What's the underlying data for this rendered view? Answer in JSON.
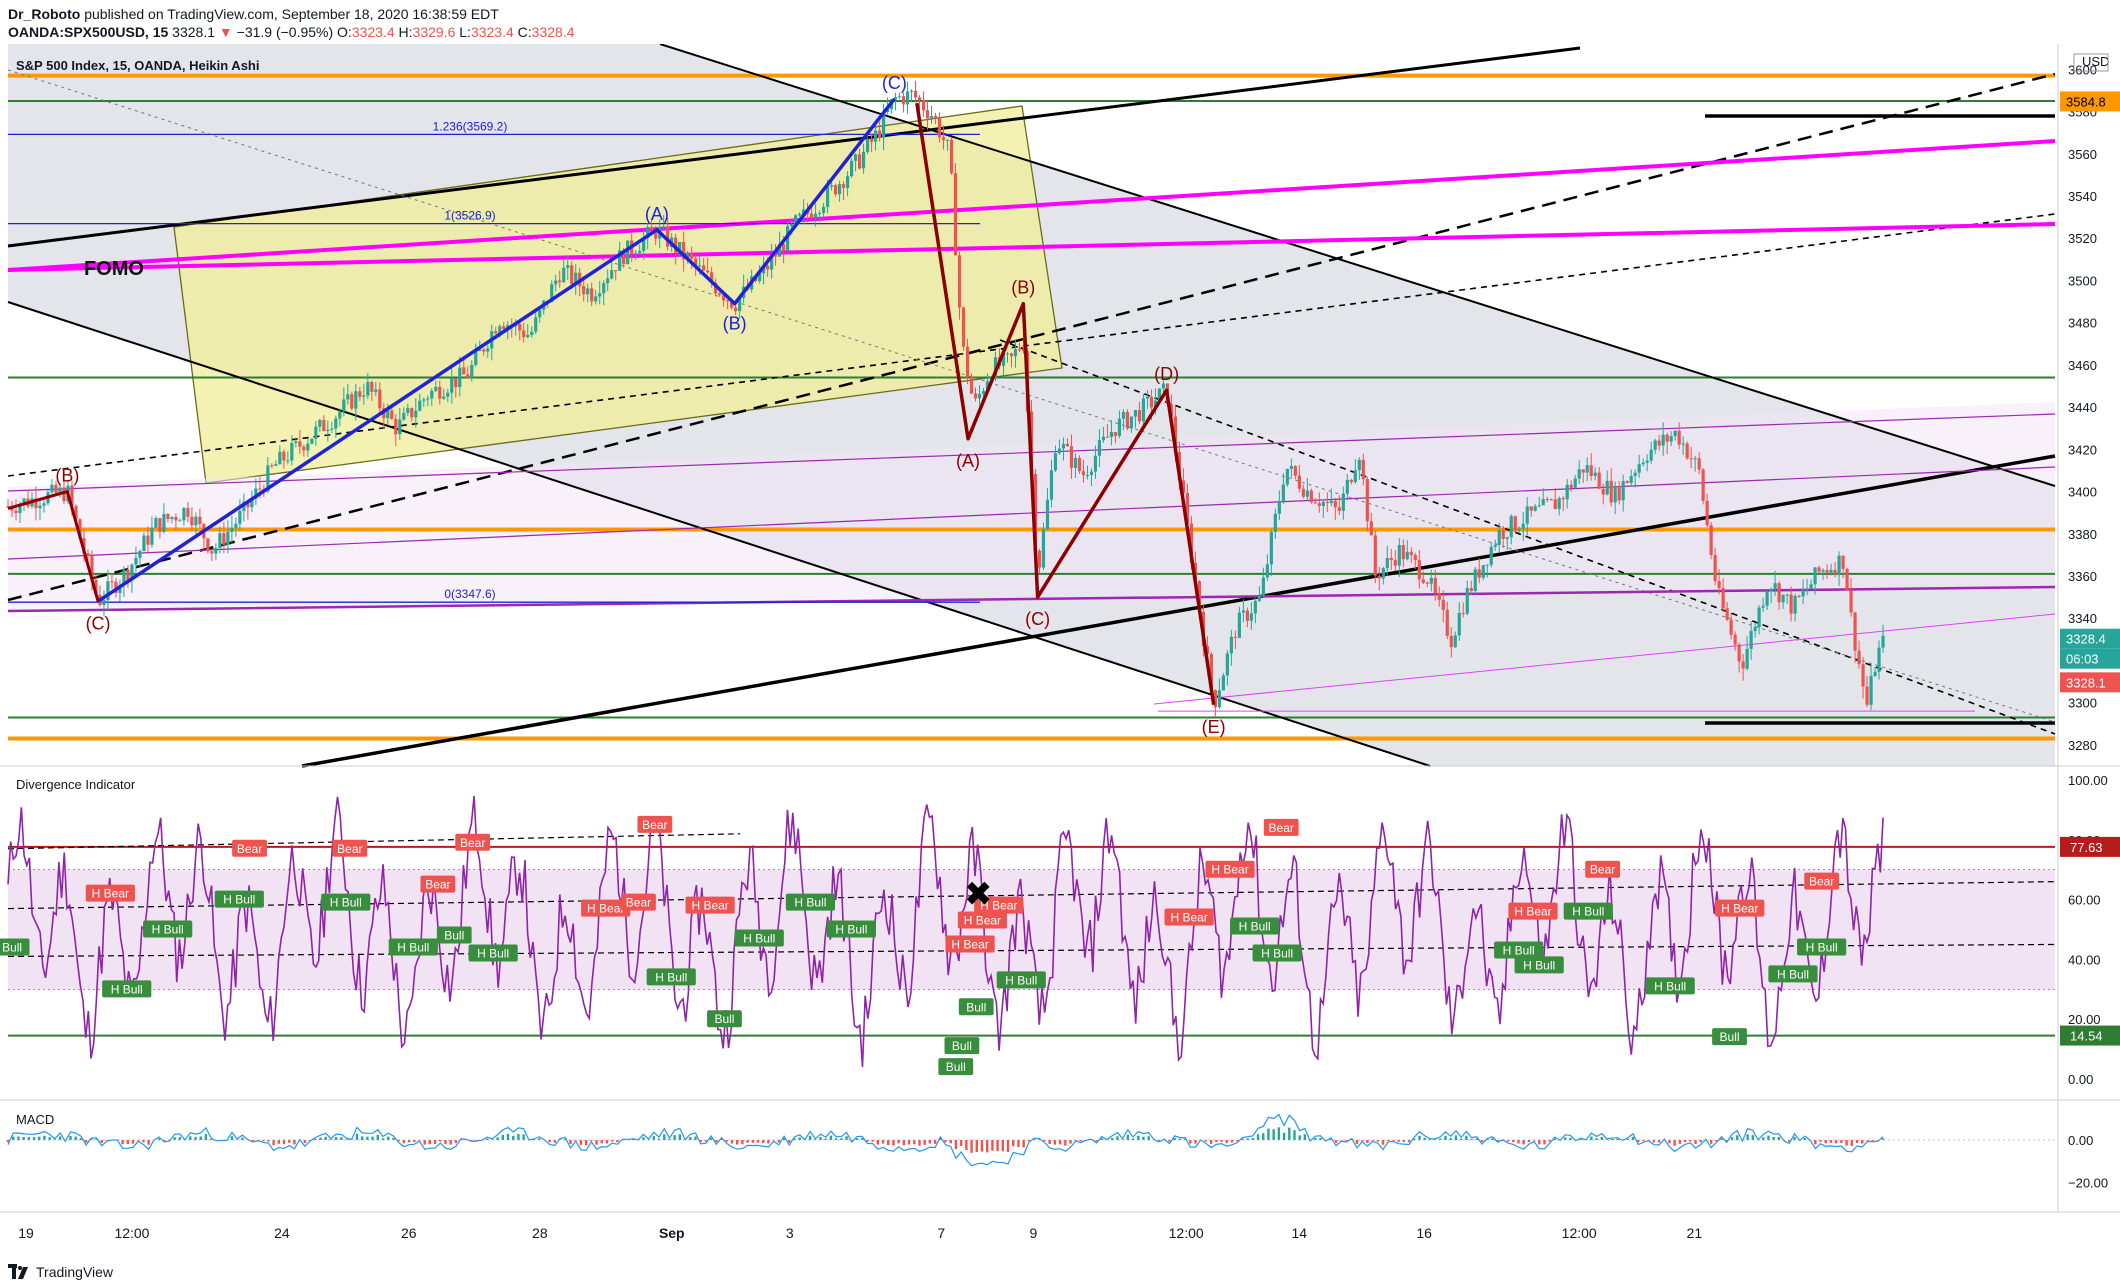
{
  "header": {
    "publisher": "Dr_Roboto",
    "published_text": " published on TradingView.com, September 18, 2020 16:38:59 EDT",
    "symbol": "OANDA:SPX500USD, 15",
    "last": "3328.1",
    "change_arrow": "▼",
    "change": "−31.9 (−0.95%)",
    "o_label": "O:",
    "o_value": "3323.4",
    "h_label": "H:",
    "h_value": "3329.6",
    "l_label": "L:",
    "l_value": "3323.4",
    "c_label": "C:",
    "c_value": "3328.4"
  },
  "footer": {
    "brand": "TradingView"
  },
  "chart_data": [
    {
      "type": "candlestick",
      "title": "S&P 500 Index, 15, OANDA, Heikin Ashi",
      "currency": "USD",
      "ylim": [
        3270,
        3612
      ],
      "y_ticks": [
        3280,
        3300,
        3320,
        3340,
        3360,
        3380,
        3400,
        3420,
        3440,
        3460,
        3480,
        3500,
        3520,
        3540,
        3560,
        3580,
        3600
      ],
      "x_ticks": [
        "19",
        "12:00",
        "24",
        "26",
        "28",
        "Sep",
        "3",
        "7",
        "9",
        "12:00",
        "14",
        "16",
        "12:00",
        "21"
      ],
      "price_labels": {
        "high_line": "3584.8",
        "current": "3328.4",
        "countdown": "06:03",
        "last": "3328.1"
      },
      "fib_levels": [
        {
          "ratio_label": "1.236(3569.2)",
          "value": 3569.2
        },
        {
          "ratio_label": "1(3526.9)",
          "value": 3526.9
        },
        {
          "ratio_label": "0(3347.6)",
          "value": 3347.6
        }
      ],
      "horizontal_levels": [
        {
          "value": 3597,
          "color": "#ff9800"
        },
        {
          "value": 3585,
          "color": "#2e7d32"
        },
        {
          "value": 3454,
          "color": "#2e7d32"
        },
        {
          "value": 3382,
          "color": "#ff9800"
        },
        {
          "value": 3361,
          "color": "#2e7d32"
        },
        {
          "value": 3293,
          "color": "#2e7d32"
        },
        {
          "value": 3283,
          "color": "#ff9800"
        }
      ],
      "annotations": {
        "fomo": "FOMO",
        "wave_blue": [
          {
            "label": "(A)",
            "x": 0.317,
            "y": 3524
          },
          {
            "label": "(B)",
            "x": 0.355,
            "y": 3489
          },
          {
            "label": "(C)",
            "x": 0.433,
            "y": 3586
          }
        ],
        "wave_red": [
          {
            "label": "(B)",
            "x": 0.029,
            "y": 3400
          },
          {
            "label": "(C)",
            "x": 0.044,
            "y": 3348
          },
          {
            "label": "(A)",
            "x": 0.469,
            "y": 3425
          },
          {
            "label": "(B)",
            "x": 0.496,
            "y": 3489
          },
          {
            "label": "(C)",
            "x": 0.503,
            "y": 3350
          },
          {
            "label": "(D)",
            "x": 0.566,
            "y": 3448
          },
          {
            "label": "(E)",
            "x": 0.589,
            "y": 3299
          }
        ]
      },
      "series": [
        {
          "name": "blue_wave",
          "color": "#1e22d8",
          "points": [
            [
              0.044,
              3348
            ],
            [
              0.317,
              3524
            ],
            [
              0.355,
              3489
            ],
            [
              0.433,
              3586
            ]
          ]
        },
        {
          "name": "red_wave",
          "color": "#8b0000",
          "points": [
            [
              0.0,
              3392
            ],
            [
              0.029,
              3400
            ],
            [
              0.044,
              3348
            ]
          ]
        },
        {
          "name": "red_wave_2",
          "color": "#8b0000",
          "points": [
            [
              0.444,
              3584
            ],
            [
              0.469,
              3425
            ],
            [
              0.496,
              3489
            ],
            [
              0.503,
              3350
            ],
            [
              0.566,
              3448
            ],
            [
              0.589,
              3299
            ]
          ]
        },
        {
          "name": "price",
          "points": [
            [
              0.0,
              3393
            ],
            [
              0.015,
              3397
            ],
            [
              0.029,
              3400
            ],
            [
              0.037,
              3372
            ],
            [
              0.044,
              3348
            ],
            [
              0.058,
              3362
            ],
            [
              0.072,
              3384
            ],
            [
              0.088,
              3392
            ],
            [
              0.1,
              3372
            ],
            [
              0.115,
              3390
            ],
            [
              0.13,
              3412
            ],
            [
              0.145,
              3424
            ],
            [
              0.16,
              3436
            ],
            [
              0.175,
              3450
            ],
            [
              0.19,
              3430
            ],
            [
              0.205,
              3446
            ],
            [
              0.225,
              3456
            ],
            [
              0.24,
              3482
            ],
            [
              0.255,
              3474
            ],
            [
              0.27,
              3505
            ],
            [
              0.285,
              3494
            ],
            [
              0.3,
              3512
            ],
            [
              0.317,
              3524
            ],
            [
              0.33,
              3512
            ],
            [
              0.345,
              3498
            ],
            [
              0.355,
              3489
            ],
            [
              0.37,
              3505
            ],
            [
              0.385,
              3527
            ],
            [
              0.4,
              3540
            ],
            [
              0.415,
              3556
            ],
            [
              0.425,
              3570
            ],
            [
              0.433,
              3586
            ],
            [
              0.442,
              3588
            ],
            [
              0.452,
              3578
            ],
            [
              0.46,
              3560
            ],
            [
              0.466,
              3470
            ],
            [
              0.472,
              3440
            ],
            [
              0.48,
              3458
            ],
            [
              0.49,
              3462
            ],
            [
              0.496,
              3472
            ],
            [
              0.503,
              3360
            ],
            [
              0.512,
              3425
            ],
            [
              0.525,
              3408
            ],
            [
              0.54,
              3430
            ],
            [
              0.553,
              3438
            ],
            [
              0.566,
              3448
            ],
            [
              0.575,
              3390
            ],
            [
              0.589,
              3299
            ],
            [
              0.6,
              3336
            ],
            [
              0.612,
              3350
            ],
            [
              0.624,
              3412
            ],
            [
              0.635,
              3400
            ],
            [
              0.65,
              3390
            ],
            [
              0.66,
              3420
            ],
            [
              0.668,
              3360
            ],
            [
              0.68,
              3372
            ],
            [
              0.693,
              3360
            ],
            [
              0.705,
              3330
            ],
            [
              0.712,
              3350
            ],
            [
              0.728,
              3380
            ],
            [
              0.742,
              3388
            ],
            [
              0.757,
              3395
            ],
            [
              0.77,
              3412
            ],
            [
              0.785,
              3398
            ],
            [
              0.8,
              3418
            ],
            [
              0.815,
              3428
            ],
            [
              0.826,
              3410
            ],
            [
              0.835,
              3352
            ],
            [
              0.847,
              3318
            ],
            [
              0.86,
              3358
            ],
            [
              0.872,
              3345
            ],
            [
              0.885,
              3362
            ],
            [
              0.897,
              3368
            ],
            [
              0.9,
              3342
            ],
            [
              0.908,
              3298
            ],
            [
              0.913,
              3322
            ],
            [
              0.916,
              3328
            ]
          ]
        }
      ]
    },
    {
      "type": "line",
      "title": "Divergence Indicator",
      "ylim": [
        -5,
        102
      ],
      "y_ticks": [
        "100.00",
        "80.00",
        "60.00",
        "40.00",
        "20.00",
        "0.00"
      ],
      "levels": {
        "upper": "77.63",
        "lower": "14.54",
        "band": [
          30,
          70
        ]
      },
      "signals": [
        {
          "label": "H Bear",
          "x": 0.05,
          "y": 62,
          "kind": "bear"
        },
        {
          "label": "H Bull",
          "x": 0.058,
          "y": 30,
          "kind": "bull"
        },
        {
          "label": "Bull",
          "x": 0.002,
          "y": 44,
          "kind": "bull"
        },
        {
          "label": "H Bull",
          "x": 0.078,
          "y": 50,
          "kind": "bull"
        },
        {
          "label": "Bear",
          "x": 0.118,
          "y": 77,
          "kind": "bear"
        },
        {
          "label": "H Bull",
          "x": 0.113,
          "y": 60,
          "kind": "bull"
        },
        {
          "label": "H Bull",
          "x": 0.165,
          "y": 59,
          "kind": "bull"
        },
        {
          "label": "Bear",
          "x": 0.167,
          "y": 77,
          "kind": "bear"
        },
        {
          "label": "H Bull",
          "x": 0.198,
          "y": 44,
          "kind": "bull"
        },
        {
          "label": "Bull",
          "x": 0.218,
          "y": 48,
          "kind": "bull"
        },
        {
          "label": "Bear",
          "x": 0.21,
          "y": 65,
          "kind": "bear"
        },
        {
          "label": "Bear",
          "x": 0.227,
          "y": 79,
          "kind": "bear"
        },
        {
          "label": "H Bull",
          "x": 0.237,
          "y": 42,
          "kind": "bull"
        },
        {
          "label": "H Bear",
          "x": 0.292,
          "y": 57,
          "kind": "bear"
        },
        {
          "label": "Bear",
          "x": 0.308,
          "y": 59,
          "kind": "bear"
        },
        {
          "label": "Bear",
          "x": 0.316,
          "y": 85,
          "kind": "bear"
        },
        {
          "label": "H Bull",
          "x": 0.324,
          "y": 34,
          "kind": "bull"
        },
        {
          "label": "Bull",
          "x": 0.35,
          "y": 20,
          "kind": "bull"
        },
        {
          "label": "H Bear",
          "x": 0.343,
          "y": 58,
          "kind": "bear"
        },
        {
          "label": "H Bull",
          "x": 0.367,
          "y": 47,
          "kind": "bull"
        },
        {
          "label": "H Bull",
          "x": 0.392,
          "y": 59,
          "kind": "bull"
        },
        {
          "label": "H Bull",
          "x": 0.412,
          "y": 50,
          "kind": "bull"
        },
        {
          "label": "H Bear",
          "x": 0.47,
          "y": 45,
          "kind": "bear"
        },
        {
          "label": "H Bear",
          "x": 0.476,
          "y": 53,
          "kind": "bear"
        },
        {
          "label": "H Bear",
          "x": 0.484,
          "y": 58,
          "kind": "bear"
        },
        {
          "label": "Bull",
          "x": 0.473,
          "y": 24,
          "kind": "bull"
        },
        {
          "label": "Bull",
          "x": 0.466,
          "y": 11,
          "kind": "bull"
        },
        {
          "label": "Bull",
          "x": 0.463,
          "y": 4,
          "kind": "bull"
        },
        {
          "label": "H Bull",
          "x": 0.495,
          "y": 33,
          "kind": "bull"
        },
        {
          "label": "H Bear",
          "x": 0.577,
          "y": 54,
          "kind": "bear"
        },
        {
          "label": "H Bear",
          "x": 0.597,
          "y": 70,
          "kind": "bear"
        },
        {
          "label": "H Bull",
          "x": 0.609,
          "y": 51,
          "kind": "bull"
        },
        {
          "label": "Bear",
          "x": 0.622,
          "y": 84,
          "kind": "bear"
        },
        {
          "label": "H Bull",
          "x": 0.62,
          "y": 42,
          "kind": "bull"
        },
        {
          "label": "H Bear",
          "x": 0.745,
          "y": 56,
          "kind": "bear"
        },
        {
          "label": "H Bull",
          "x": 0.738,
          "y": 43,
          "kind": "bull"
        },
        {
          "label": "H Bull",
          "x": 0.748,
          "y": 38,
          "kind": "bull"
        },
        {
          "label": "H Bull",
          "x": 0.772,
          "y": 56,
          "kind": "bull"
        },
        {
          "label": "Bear",
          "x": 0.779,
          "y": 70,
          "kind": "bear"
        },
        {
          "label": "H Bear",
          "x": 0.846,
          "y": 57,
          "kind": "bear"
        },
        {
          "label": "Bull",
          "x": 0.841,
          "y": 14,
          "kind": "bull"
        },
        {
          "label": "H Bull",
          "x": 0.812,
          "y": 31,
          "kind": "bull"
        },
        {
          "label": "H Bull",
          "x": 0.872,
          "y": 35,
          "kind": "bull"
        },
        {
          "label": "Bear",
          "x": 0.886,
          "y": 66,
          "kind": "bear"
        },
        {
          "label": "H Bull",
          "x": 0.886,
          "y": 44,
          "kind": "bull"
        }
      ],
      "marker": {
        "symbol": "✖",
        "x": 0.474,
        "y": 62
      }
    },
    {
      "type": "line",
      "title": "MACD",
      "ylim": [
        -32,
        16
      ],
      "y_ticks": [
        "0.00",
        "−20.00"
      ]
    }
  ]
}
